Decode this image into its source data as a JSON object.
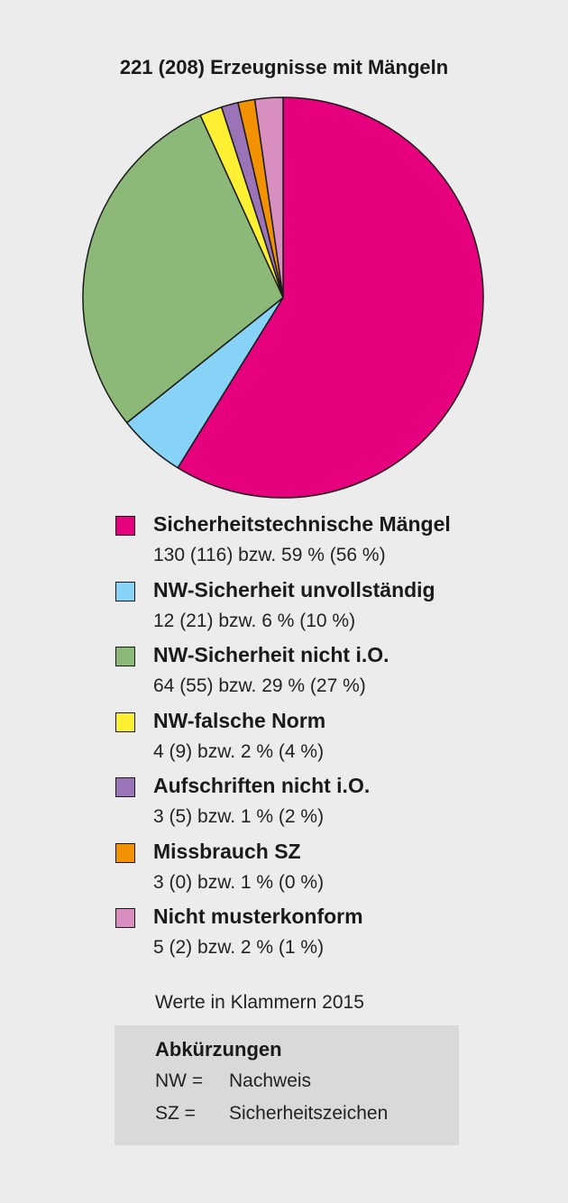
{
  "chart_data": {
    "type": "pie",
    "title": "221 (208) Erzeugnisse mit Mängeln",
    "slices": [
      {
        "label": "Sicherheitstechnische Mängel",
        "value": 130,
        "previous": 116,
        "text": "130 (116) bzw. 59 % (56 %)",
        "color": "#e6007e"
      },
      {
        "label": "NW-Sicherheit unvollständig",
        "value": 12,
        "previous": 21,
        "text": "12 (21) bzw. 6 % (10 %)",
        "color": "#87d3f8"
      },
      {
        "label": "NW-Sicherheit nicht i.O.",
        "value": 64,
        "previous": 55,
        "text": "64 (55) bzw. 29 % (27 %)",
        "color": "#8cb878"
      },
      {
        "label": "NW-falsche Norm",
        "value": 4,
        "previous": 9,
        "text": "4 (9) bzw. 2 % (4 %)",
        "color": "#fff033"
      },
      {
        "label": "Aufschriften nicht i.O.",
        "value": 3,
        "previous": 5,
        "text": "3 (5) bzw. 1 % (2 %)",
        "color": "#9b73b7"
      },
      {
        "label": "Missbrauch SZ",
        "value": 3,
        "previous": 0,
        "text": "3 (0) bzw. 1 % (0 %)",
        "color": "#f39200"
      },
      {
        "label": "Nicht musterkonform",
        "value": 5,
        "previous": 2,
        "text": "5 (2) bzw. 2 % (1 %)",
        "color": "#d88fc0"
      }
    ]
  },
  "footnote": "Werte in Klammern 2015",
  "abbreviations": {
    "heading": "Abkürzungen",
    "items": [
      {
        "term": "NW =",
        "definition": "Nachweis"
      },
      {
        "term": "SZ =",
        "definition": "Sicherheitszeichen"
      }
    ]
  }
}
